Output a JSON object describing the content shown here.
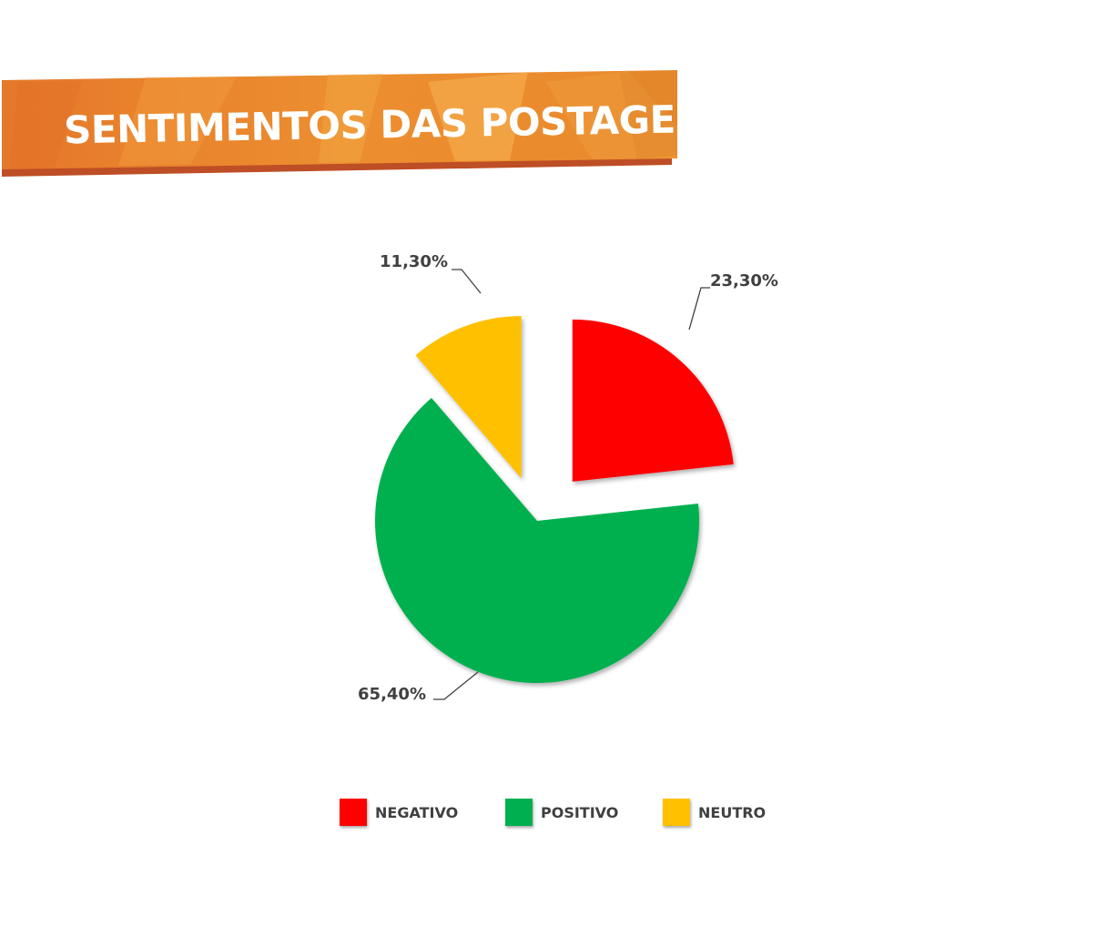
{
  "banner": {
    "title": "SENTIMENTOS DAS POSTAGENS",
    "colors": {
      "main": "#E8822A",
      "light": "#F3A84A",
      "shadow": "#C0522A"
    }
  },
  "chart_data": {
    "type": "pie",
    "title": "SENTIMENTOS DAS POSTAGENS",
    "slices": [
      {
        "name": "NEGATIVO",
        "value": 23.3,
        "label": "23,30%",
        "color": "#FF0000"
      },
      {
        "name": "POSITIVO",
        "value": 65.4,
        "label": "65,40%",
        "color": "#00B050"
      },
      {
        "name": "NEUTRO",
        "value": 11.3,
        "label": "11,30%",
        "color": "#FFC000"
      }
    ],
    "legend_position": "bottom",
    "exploded": true
  }
}
